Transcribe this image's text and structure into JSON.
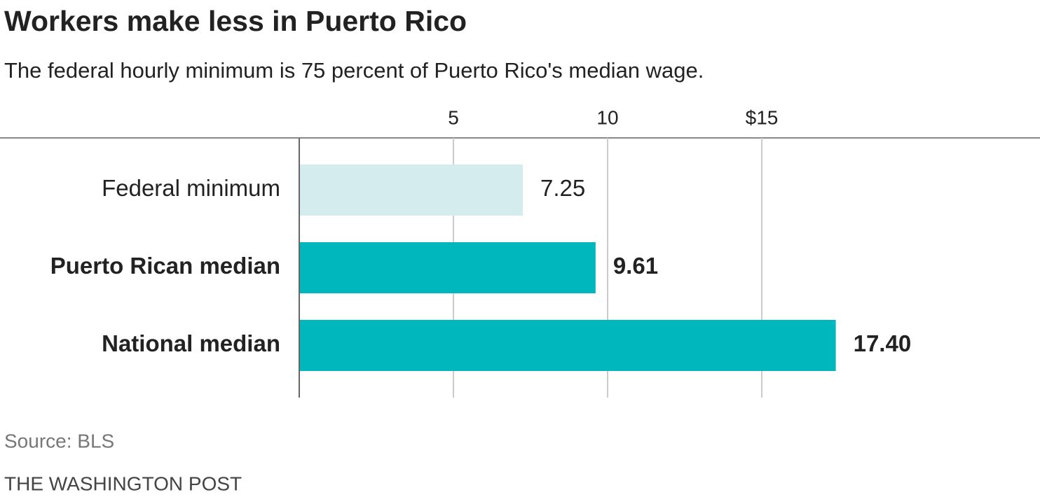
{
  "chart_data": {
    "type": "bar",
    "orientation": "horizontal",
    "title": "Workers make less in Puerto Rico",
    "subtitle": "The federal hourly minimum is 75 percent of Puerto Rico's median wage.",
    "categories": [
      "Federal minimum",
      "Puerto Rican median",
      "National median"
    ],
    "values": [
      7.25,
      9.61,
      17.4
    ],
    "value_labels": [
      "7.25",
      "9.61",
      "17.40"
    ],
    "colors": [
      "#d5ecef",
      "#00b7bd",
      "#00b7bd"
    ],
    "bold": [
      false,
      true,
      true
    ],
    "xlim": [
      0,
      24
    ],
    "xticks": [
      5,
      10,
      {
        "value": 15,
        "label": "$15"
      }
    ],
    "grid": true,
    "source": "Source: BLS",
    "credit": "THE WASHINGTON POST"
  }
}
